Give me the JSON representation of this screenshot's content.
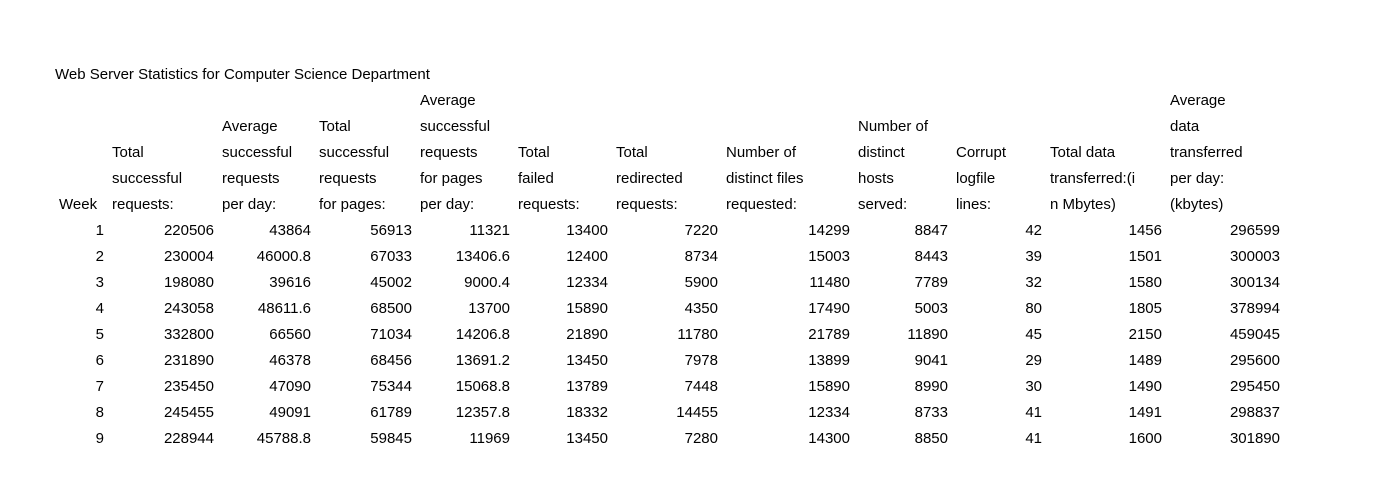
{
  "title": "Web Server Statistics for Computer Science Department",
  "table": {
    "columns": [
      {
        "id": "week",
        "label": "Week"
      },
      {
        "id": "total_successful_requests",
        "label": "Total\nsuccessful\nrequests:"
      },
      {
        "id": "avg_successful_requests_per_day",
        "label": "Average\nsuccessful\nrequests\nper day:"
      },
      {
        "id": "total_successful_requests_pages",
        "label": "Total\nsuccessful\nrequests\nfor pages:"
      },
      {
        "id": "avg_successful_requests_pages_per_day",
        "label": "Average\nsuccessful\nrequests\nfor pages\nper day:"
      },
      {
        "id": "total_failed_requests",
        "label": "Total\nfailed\nrequests:"
      },
      {
        "id": "total_redirected_requests",
        "label": "Total\nredirected\nrequests:"
      },
      {
        "id": "distinct_files_requested",
        "label": "Number of\ndistinct files\nrequested:"
      },
      {
        "id": "distinct_hosts_served",
        "label": "Number of\ndistinct\nhosts\nserved:"
      },
      {
        "id": "corrupt_logfile_lines",
        "label": "Corrupt\nlogfile\nlines:"
      },
      {
        "id": "total_data_transferred_mbytes",
        "label": "Total data\ntransferred:(i\nn Mbytes)"
      },
      {
        "id": "avg_data_transferred_per_day_kbytes",
        "label": "Average\ndata\ntransferred\nper day:\n(kbytes)"
      }
    ],
    "rows": [
      [
        "1",
        "220506",
        "43864",
        "56913",
        "11321",
        "13400",
        "7220",
        "14299",
        "8847",
        "42",
        "1456",
        "296599"
      ],
      [
        "2",
        "230004",
        "46000.8",
        "67033",
        "13406.6",
        "12400",
        "8734",
        "15003",
        "8443",
        "39",
        "1501",
        "300003"
      ],
      [
        "3",
        "198080",
        "39616",
        "45002",
        "9000.4",
        "12334",
        "5900",
        "11480",
        "7789",
        "32",
        "1580",
        "300134"
      ],
      [
        "4",
        "243058",
        "48611.6",
        "68500",
        "13700",
        "15890",
        "4350",
        "17490",
        "5003",
        "80",
        "1805",
        "378994"
      ],
      [
        "5",
        "332800",
        "66560",
        "71034",
        "14206.8",
        "21890",
        "11780",
        "21789",
        "11890",
        "45",
        "2150",
        "459045"
      ],
      [
        "6",
        "231890",
        "46378",
        "68456",
        "13691.2",
        "13450",
        "7978",
        "13899",
        "9041",
        "29",
        "1489",
        "295600"
      ],
      [
        "7",
        "235450",
        "47090",
        "75344",
        "15068.8",
        "13789",
        "7448",
        "15890",
        "8990",
        "30",
        "1490",
        "295450"
      ],
      [
        "8",
        "245455",
        "49091",
        "61789",
        "12357.8",
        "18332",
        "14455",
        "12334",
        "8733",
        "41",
        "1491",
        "298837"
      ],
      [
        "9",
        "228944",
        "45788.8",
        "59845",
        "11969",
        "13450",
        "7280",
        "14300",
        "8850",
        "41",
        "1600",
        "301890"
      ]
    ]
  }
}
